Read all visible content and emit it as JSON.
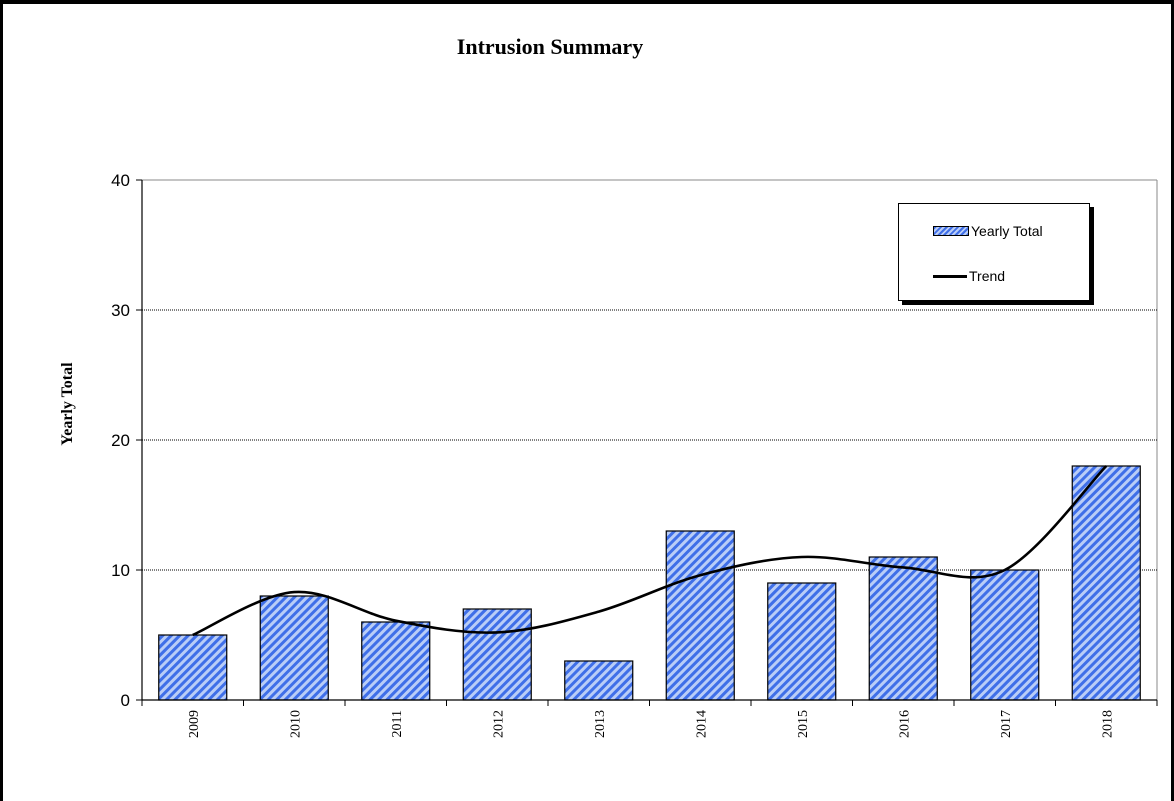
{
  "chart_data": {
    "type": "bar",
    "title": "Intrusion Summary",
    "xlabel": "",
    "ylabel": "Yearly Total",
    "categories": [
      "2009",
      "2010",
      "2011",
      "2012",
      "2013",
      "2014",
      "2015",
      "2016",
      "2017",
      "2018"
    ],
    "series": [
      {
        "name": "Yearly Total",
        "type": "bar",
        "values": [
          5,
          8,
          6,
          7,
          3,
          13,
          9,
          11,
          10,
          18
        ]
      },
      {
        "name": "Trend",
        "type": "line",
        "values": [
          5,
          8.3,
          6.1,
          5.2,
          6.8,
          9.6,
          11,
          10.2,
          10,
          18
        ]
      }
    ],
    "ylim": [
      0,
      40
    ],
    "yticks": [
      0,
      10,
      20,
      30,
      40
    ],
    "grid": "horizontal dotted",
    "legend_position": "top-right",
    "colors": {
      "bar_fill": "#3f6fe8",
      "bar_hatch": "#b9cdf7",
      "trend_line": "#000000"
    }
  }
}
